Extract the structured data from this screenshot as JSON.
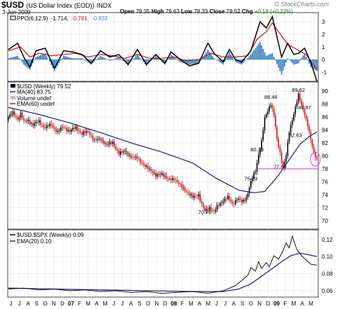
{
  "header": {
    "symbol": "$USD",
    "description": "(US Dollar Index (EOD))",
    "exchange": "INDX",
    "date": "3-Jun-2009",
    "open_label": "Open",
    "open": "79.35",
    "high_label": "High",
    "high": "79.63",
    "low_label": "Low",
    "low": "78.33",
    "close_label": "Close",
    "close": "79.52",
    "chg_label": "Chg",
    "chg": "+0.18 (+0.22%)",
    "brand": "© StockCharts.com"
  },
  "colors": {
    "bull_candle": "#000000",
    "bear_candle": "#d0101a",
    "ma40": "#2b2f7a",
    "ema60": "#d0101a",
    "ppo_line": "#000000",
    "ppo_signal": "#d0101a",
    "ppo_hist": "#3a82c4",
    "support_line": "#e040e0",
    "ratio_line": "#000000",
    "ratio_ema": "#2b2f7a"
  },
  "chart_data": [
    {
      "type": "bar",
      "panel": "ppo",
      "legend": "PPO(6,12,9) -1.714, -0.781, -0.933",
      "legend_parts": [
        "PPO(6,12,9)",
        "-1.714,",
        "-0.781,",
        "-0.933"
      ],
      "ylim": [
        -1.5,
        3.5
      ],
      "yticks": [
        3,
        2,
        1,
        0,
        -1
      ],
      "ppo_points": [
        [
          0,
          0.8
        ],
        [
          6,
          1.3
        ],
        [
          10,
          0.2
        ],
        [
          14,
          -0.6
        ],
        [
          18,
          0.7
        ],
        [
          24,
          0.9
        ],
        [
          30,
          -0.7
        ],
        [
          36,
          0.7
        ],
        [
          42,
          0.6
        ],
        [
          48,
          0.4
        ],
        [
          54,
          -0.3
        ],
        [
          60,
          0.7
        ],
        [
          66,
          0.2
        ],
        [
          72,
          0.4
        ],
        [
          78,
          -0.4
        ],
        [
          84,
          0.8
        ],
        [
          90,
          -0.4
        ],
        [
          96,
          0.4
        ],
        [
          102,
          -0.3
        ],
        [
          106,
          0.6
        ],
        [
          112,
          0.0
        ],
        [
          118,
          -0.5
        ],
        [
          124,
          -0.3
        ],
        [
          130,
          1.3
        ],
        [
          134,
          0.5
        ],
        [
          140,
          -0.2
        ],
        [
          144,
          0.8
        ],
        [
          148,
          0.0
        ],
        [
          152,
          -0.2
        ],
        [
          158,
          0.7
        ],
        [
          164,
          3.0
        ],
        [
          168,
          2.5
        ],
        [
          172,
          3.4
        ],
        [
          178,
          0.2
        ],
        [
          182,
          1.3
        ],
        [
          186,
          0.4
        ],
        [
          189,
          0.5
        ],
        [
          193,
          0.9
        ],
        [
          197,
          -0.2
        ],
        [
          201,
          -1.7
        ]
      ],
      "signal_points": [
        [
          0,
          0.7
        ],
        [
          8,
          1.0
        ],
        [
          14,
          0.2
        ],
        [
          20,
          0.5
        ],
        [
          28,
          0.3
        ],
        [
          36,
          0.4
        ],
        [
          44,
          0.5
        ],
        [
          52,
          0.2
        ],
        [
          60,
          0.4
        ],
        [
          68,
          0.3
        ],
        [
          76,
          0.1
        ],
        [
          84,
          0.4
        ],
        [
          92,
          0.1
        ],
        [
          100,
          0.1
        ],
        [
          108,
          0.2
        ],
        [
          116,
          -0.1
        ],
        [
          124,
          0.0
        ],
        [
          132,
          0.5
        ],
        [
          140,
          0.2
        ],
        [
          148,
          0.2
        ],
        [
          156,
          0.3
        ],
        [
          162,
          1.6
        ],
        [
          168,
          2.2
        ],
        [
          172,
          2.9
        ],
        [
          176,
          2.2
        ],
        [
          182,
          1.2
        ],
        [
          188,
          0.8
        ],
        [
          194,
          0.4
        ],
        [
          201,
          -0.8
        ]
      ],
      "hist_points": [
        [
          0,
          0.1
        ],
        [
          6,
          0.3
        ],
        [
          10,
          -0.4
        ],
        [
          14,
          -0.8
        ],
        [
          18,
          0.2
        ],
        [
          24,
          0.5
        ],
        [
          30,
          -0.9
        ],
        [
          36,
          0.3
        ],
        [
          42,
          0.1
        ],
        [
          48,
          0.1
        ],
        [
          54,
          -0.4
        ],
        [
          60,
          0.3
        ],
        [
          66,
          -0.1
        ],
        [
          72,
          0.2
        ],
        [
          78,
          -0.4
        ],
        [
          84,
          0.4
        ],
        [
          90,
          -0.5
        ],
        [
          96,
          0.3
        ],
        [
          102,
          -0.4
        ],
        [
          106,
          0.4
        ],
        [
          112,
          -0.2
        ],
        [
          118,
          -0.4
        ],
        [
          124,
          -0.3
        ],
        [
          130,
          0.8
        ],
        [
          134,
          0.1
        ],
        [
          140,
          -0.4
        ],
        [
          144,
          0.6
        ],
        [
          148,
          -0.2
        ],
        [
          152,
          -0.4
        ],
        [
          158,
          0.4
        ],
        [
          164,
          1.4
        ],
        [
          168,
          0.3
        ],
        [
          172,
          0.5
        ],
        [
          178,
          -1.2
        ],
        [
          182,
          0.1
        ],
        [
          186,
          -0.4
        ],
        [
          189,
          -0.3
        ],
        [
          193,
          0.5
        ],
        [
          197,
          -0.6
        ],
        [
          201,
          -0.9
        ]
      ]
    },
    {
      "type": "candlestick",
      "panel": "price",
      "legend": [
        "$USD (Weekly) 79.52",
        "MA(40) 83.75",
        "Volume undef",
        "EMA(60) undef"
      ],
      "ylim": [
        69,
        91
      ],
      "yticks": [
        90,
        88,
        86,
        84,
        82,
        80,
        78,
        76,
        74,
        72,
        70
      ],
      "close_points": [
        [
          0,
          86.0
        ],
        [
          3,
          86.6
        ],
        [
          6,
          85.8
        ],
        [
          8,
          86.5
        ],
        [
          10,
          85.2
        ],
        [
          13,
          85.6
        ],
        [
          16,
          84.7
        ],
        [
          20,
          85.4
        ],
        [
          24,
          84.3
        ],
        [
          28,
          84.9
        ],
        [
          32,
          83.6
        ],
        [
          36,
          84.6
        ],
        [
          40,
          83.7
        ],
        [
          44,
          84.5
        ],
        [
          48,
          83.3
        ],
        [
          52,
          83.9
        ],
        [
          56,
          82.3
        ],
        [
          60,
          82.7
        ],
        [
          64,
          81.6
        ],
        [
          68,
          82.2
        ],
        [
          72,
          80.2
        ],
        [
          76,
          80.9
        ],
        [
          80,
          79.6
        ],
        [
          84,
          79.9
        ],
        [
          88,
          78.4
        ],
        [
          92,
          78.1
        ],
        [
          96,
          76.8
        ],
        [
          100,
          77.4
        ],
        [
          104,
          76.2
        ],
        [
          108,
          76.6
        ],
        [
          112,
          75.3
        ],
        [
          116,
          74.6
        ],
        [
          120,
          73.5
        ],
        [
          124,
          74.1
        ],
        [
          126,
          72.4
        ],
        [
          128,
          71.4
        ],
        [
          131,
          72.1
        ],
        [
          134,
          71.3
        ],
        [
          137,
          72.4
        ],
        [
          140,
          73.2
        ],
        [
          143,
          73.5
        ],
        [
          146,
          72.6
        ],
        [
          149,
          73.4
        ],
        [
          152,
          72.8
        ],
        [
          155,
          73.6
        ],
        [
          158,
          75.9
        ],
        [
          161,
          77.7
        ],
        [
          163,
          80.3
        ],
        [
          165,
          82.3
        ],
        [
          167,
          85.7
        ],
        [
          169,
          87.0
        ],
        [
          171,
          88.2
        ],
        [
          173,
          86.3
        ],
        [
          175,
          82.4
        ],
        [
          177,
          80.4
        ],
        [
          179,
          78.3
        ],
        [
          181,
          80.1
        ],
        [
          183,
          83.6
        ],
        [
          185,
          85.6
        ],
        [
          187,
          87.7
        ],
        [
          189,
          89.4
        ],
        [
          191,
          87.7
        ],
        [
          193,
          86.5
        ],
        [
          195,
          84.9
        ],
        [
          197,
          82.4
        ],
        [
          199,
          80.3
        ],
        [
          201,
          79.5
        ]
      ],
      "ma40_points": [
        [
          0,
          87.5
        ],
        [
          20,
          86.4
        ],
        [
          40,
          85.1
        ],
        [
          60,
          83.6
        ],
        [
          80,
          82.0
        ],
        [
          100,
          80.6
        ],
        [
          120,
          78.9
        ],
        [
          135,
          76.6
        ],
        [
          150,
          74.7
        ],
        [
          160,
          74.3
        ],
        [
          167,
          74.5
        ],
        [
          175,
          76.7
        ],
        [
          183,
          79.4
        ],
        [
          190,
          81.8
        ],
        [
          196,
          83.0
        ],
        [
          201,
          83.7
        ]
      ],
      "annotations": [
        {
          "label": "88.46",
          "x": 171,
          "y": 88.5
        },
        {
          "label": "89.62",
          "x": 189,
          "y": 89.6
        },
        {
          "label": "86.87",
          "x": 193,
          "y": 86.9
        },
        {
          "label": "80.38",
          "x": 162,
          "y": 80.4
        },
        {
          "label": "82.63",
          "x": 187,
          "y": 82.6
        },
        {
          "label": "77.69",
          "x": 177,
          "y": 77.7
        },
        {
          "label": "75.89",
          "x": 158,
          "y": 75.9
        },
        {
          "label": "70.70",
          "x": 128,
          "y": 70.7
        }
      ],
      "support_line": {
        "y": 78.0,
        "x_start": 163,
        "x_end": 201
      },
      "circle": {
        "x": 200,
        "y": 79.5
      }
    },
    {
      "type": "line",
      "panel": "ratio",
      "legend": [
        "$USD:$SPX (Weekly) 0.09",
        "EMA(20) 0.10"
      ],
      "ylim": [
        0.055,
        0.128
      ],
      "yticks": [
        0.12,
        0.1,
        0.08,
        0.06
      ],
      "ratio_points": [
        [
          0,
          0.062
        ],
        [
          10,
          0.063
        ],
        [
          20,
          0.061
        ],
        [
          30,
          0.062
        ],
        [
          40,
          0.06
        ],
        [
          50,
          0.061
        ],
        [
          60,
          0.059
        ],
        [
          70,
          0.06
        ],
        [
          80,
          0.058
        ],
        [
          90,
          0.059
        ],
        [
          100,
          0.057
        ],
        [
          110,
          0.058
        ],
        [
          120,
          0.059
        ],
        [
          130,
          0.057
        ],
        [
          140,
          0.06
        ],
        [
          148,
          0.066
        ],
        [
          152,
          0.072
        ],
        [
          156,
          0.078
        ],
        [
          158,
          0.087
        ],
        [
          161,
          0.083
        ],
        [
          163,
          0.094
        ],
        [
          165,
          0.086
        ],
        [
          168,
          0.093
        ],
        [
          170,
          0.088
        ],
        [
          173,
          0.101
        ],
        [
          176,
          0.097
        ],
        [
          179,
          0.107
        ],
        [
          181,
          0.116
        ],
        [
          183,
          0.11
        ],
        [
          185,
          0.124
        ],
        [
          188,
          0.108
        ],
        [
          191,
          0.101
        ],
        [
          194,
          0.096
        ],
        [
          197,
          0.091
        ],
        [
          201,
          0.09
        ]
      ],
      "ema_points": [
        [
          0,
          0.063
        ],
        [
          30,
          0.062
        ],
        [
          60,
          0.061
        ],
        [
          90,
          0.06
        ],
        [
          120,
          0.059
        ],
        [
          140,
          0.059
        ],
        [
          150,
          0.062
        ],
        [
          158,
          0.068
        ],
        [
          165,
          0.077
        ],
        [
          172,
          0.086
        ],
        [
          178,
          0.094
        ],
        [
          184,
          0.101
        ],
        [
          190,
          0.104
        ],
        [
          196,
          0.102
        ],
        [
          201,
          0.1
        ]
      ]
    }
  ],
  "x_axis": {
    "labels": [
      "J",
      "J",
      "A",
      "S",
      "O",
      "N",
      "D",
      "07",
      "F",
      "M",
      "A",
      "M",
      "J",
      "J",
      "A",
      "S",
      "O",
      "N",
      "D",
      "08",
      "F",
      "M",
      "A",
      "M",
      "J",
      "J",
      "A",
      "S",
      "O",
      "N",
      "D",
      "09",
      "F",
      "M",
      "A",
      "M"
    ],
    "year_labels": [
      "07",
      "08",
      "09"
    ]
  }
}
